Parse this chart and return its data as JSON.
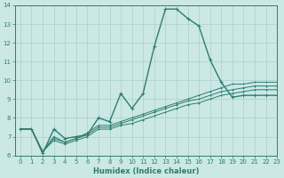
{
  "title": "",
  "xlabel": "Humidex (Indice chaleur)",
  "ylabel": "",
  "xlim": [
    -0.5,
    23
  ],
  "ylim": [
    6,
    14
  ],
  "xticks": [
    0,
    1,
    2,
    3,
    4,
    5,
    6,
    7,
    8,
    9,
    10,
    11,
    12,
    13,
    14,
    15,
    16,
    17,
    18,
    19,
    20,
    21,
    22,
    23
  ],
  "yticks": [
    6,
    7,
    8,
    9,
    10,
    11,
    12,
    13,
    14
  ],
  "bg_color": "#cbe8e5",
  "line_color": "#2e7d6e",
  "grid_color": "#aacfcf",
  "series": [
    [
      7.4,
      7.4,
      6.1,
      7.4,
      6.9,
      7.0,
      7.1,
      8.0,
      7.8,
      9.3,
      8.5,
      9.3,
      11.8,
      13.8,
      13.8,
      13.3,
      12.9,
      11.1,
      9.9,
      9.1,
      9.2,
      9.2,
      9.2,
      9.2
    ],
    [
      7.4,
      7.4,
      6.2,
      7.0,
      6.7,
      6.9,
      7.2,
      7.6,
      7.6,
      7.8,
      8.0,
      8.2,
      8.4,
      8.6,
      8.8,
      9.0,
      9.2,
      9.4,
      9.6,
      9.8,
      9.8,
      9.9,
      9.9,
      9.9
    ],
    [
      7.4,
      7.4,
      6.2,
      6.9,
      6.7,
      6.9,
      7.1,
      7.5,
      7.5,
      7.7,
      7.9,
      8.1,
      8.3,
      8.5,
      8.7,
      8.9,
      9.0,
      9.2,
      9.4,
      9.5,
      9.6,
      9.7,
      9.7,
      9.7
    ],
    [
      7.4,
      7.4,
      6.2,
      6.8,
      6.6,
      6.8,
      7.0,
      7.4,
      7.4,
      7.6,
      7.7,
      7.9,
      8.1,
      8.3,
      8.5,
      8.7,
      8.8,
      9.0,
      9.2,
      9.3,
      9.4,
      9.5,
      9.5,
      9.5
    ]
  ],
  "tick_fontsize": 5.0,
  "xlabel_fontsize": 6.0,
  "linewidths": [
    1.0,
    0.7,
    0.7,
    0.7
  ],
  "markersizes": [
    2.5,
    2.0,
    2.0,
    2.0
  ]
}
